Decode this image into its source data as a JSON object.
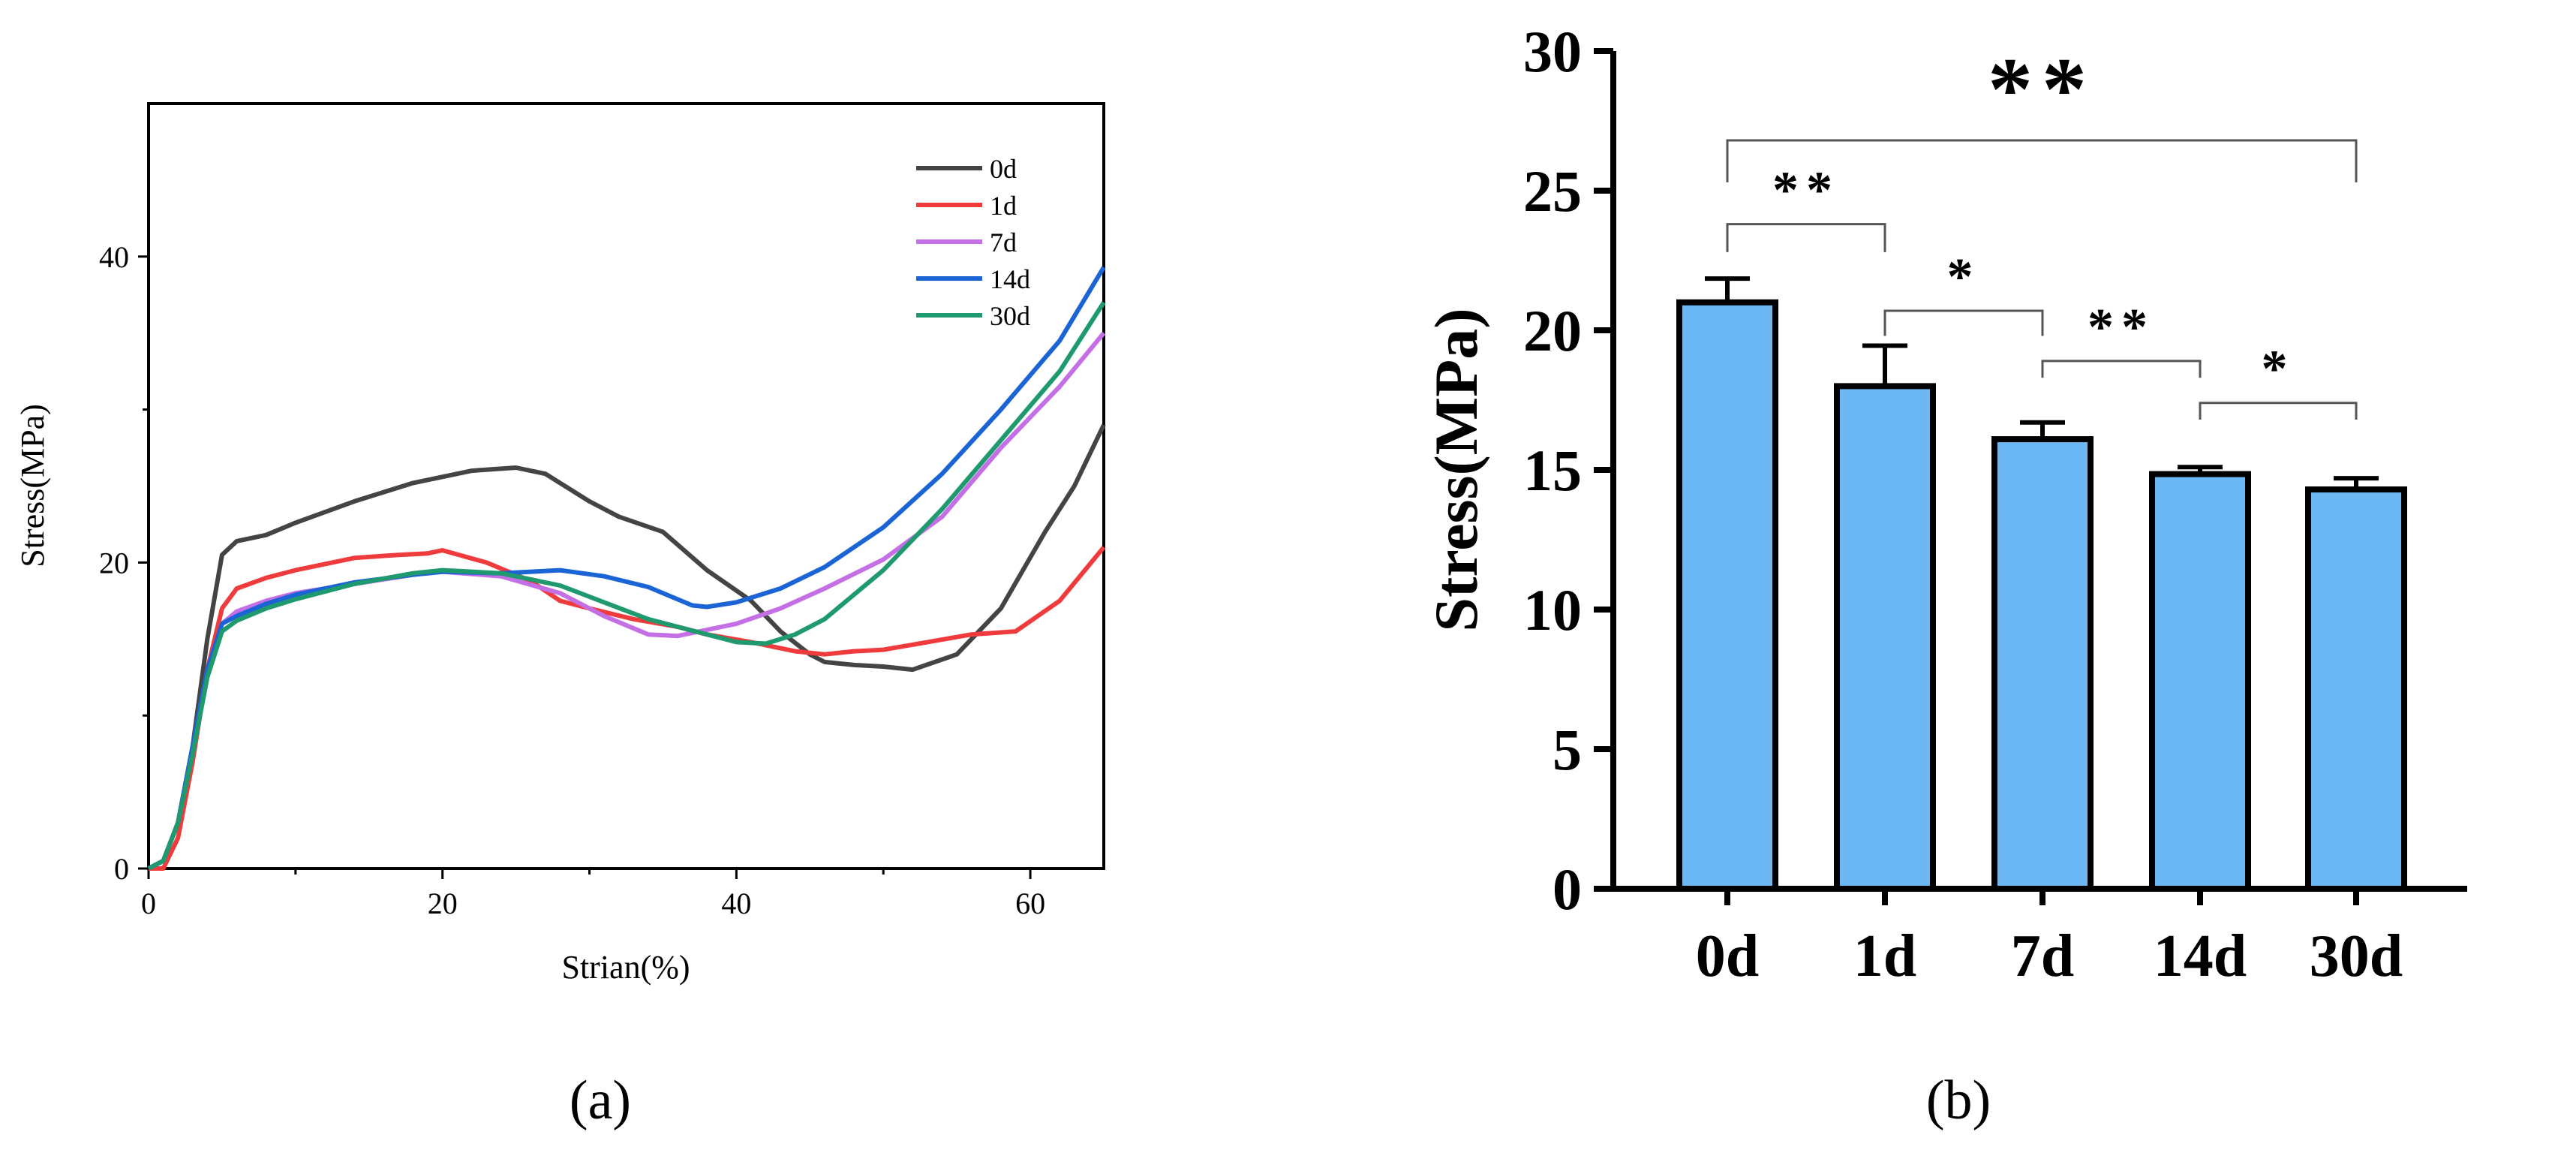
{
  "chart_data": [
    {
      "panel": "(a)",
      "type": "line",
      "xlabel": "Strian(%)",
      "ylabel": "Stress(MPa)",
      "xlim": [
        0,
        65
      ],
      "ylim": [
        0,
        50
      ],
      "xticks": [
        0,
        20,
        40,
        60
      ],
      "yticks": [
        0,
        20,
        40
      ],
      "legend_position": "top-right",
      "series": [
        {
          "name": "0d",
          "color": "#444444",
          "x": [
            0,
            1,
            2,
            3,
            4,
            5,
            6,
            8,
            10,
            14,
            18,
            22,
            25,
            27,
            30,
            32,
            35,
            38,
            41,
            43,
            45,
            46,
            48,
            50,
            52,
            55,
            58,
            61,
            63,
            65
          ],
          "y": [
            0,
            0.5,
            3,
            8,
            15,
            20.5,
            21.4,
            21.8,
            22.6,
            24,
            25.2,
            26,
            26.2,
            25.8,
            24,
            23,
            22,
            19.5,
            17.5,
            15.5,
            14,
            13.5,
            13.3,
            13.2,
            13,
            14,
            17,
            22,
            25,
            29
          ]
        },
        {
          "name": "1d",
          "color": "#ef3b3b",
          "x": [
            0,
            1,
            2,
            3,
            4,
            5,
            6,
            8,
            10,
            14,
            17,
            19,
            20,
            23,
            26,
            28,
            30,
            33,
            36,
            38,
            41,
            44,
            46,
            48,
            50,
            53,
            56,
            59,
            62,
            65
          ],
          "y": [
            0,
            0,
            2,
            7,
            13,
            17,
            18.3,
            19,
            19.5,
            20.3,
            20.5,
            20.6,
            20.8,
            20,
            18.8,
            17.5,
            17,
            16.3,
            15.8,
            15.3,
            14.8,
            14.2,
            14,
            14.2,
            14.3,
            14.8,
            15.3,
            15.5,
            17.5,
            21
          ]
        },
        {
          "name": "7d",
          "color": "#c46fe6",
          "x": [
            0,
            1,
            2,
            3,
            4,
            5,
            6,
            8,
            10,
            14,
            18,
            20,
            24,
            28,
            31,
            34,
            36,
            38,
            40,
            43,
            46,
            50,
            54,
            58,
            62,
            65
          ],
          "y": [
            0,
            0.5,
            3,
            8,
            13,
            16,
            16.8,
            17.5,
            18,
            18.6,
            19.2,
            19.4,
            19.1,
            18,
            16.5,
            15.3,
            15.2,
            15.6,
            16,
            17,
            18.3,
            20.2,
            23,
            27.5,
            31.5,
            35
          ]
        },
        {
          "name": "14d",
          "color": "#1a64d6",
          "x": [
            0,
            1,
            2,
            3,
            4,
            5,
            6,
            8,
            10,
            14,
            18,
            20,
            24,
            28,
            31,
            34,
            37,
            38,
            40,
            43,
            46,
            50,
            54,
            58,
            62,
            65
          ],
          "y": [
            0,
            0.5,
            3,
            8,
            13,
            16,
            16.5,
            17.3,
            17.9,
            18.7,
            19.2,
            19.4,
            19.3,
            19.5,
            19.1,
            18.4,
            17.2,
            17.1,
            17.4,
            18.3,
            19.7,
            22.3,
            25.8,
            30,
            34.5,
            39.3
          ]
        },
        {
          "name": "30d",
          "color": "#1e9a6e",
          "x": [
            0,
            1,
            2,
            3,
            4,
            5,
            6,
            8,
            10,
            14,
            18,
            20,
            24,
            28,
            31,
            34,
            36,
            38,
            40,
            42,
            44,
            46,
            50,
            54,
            58,
            62,
            65
          ],
          "y": [
            0,
            0.5,
            3,
            7.5,
            12.5,
            15.5,
            16.2,
            17,
            17.6,
            18.6,
            19.3,
            19.5,
            19.3,
            18.5,
            17.4,
            16.3,
            15.8,
            15.3,
            14.8,
            14.7,
            15.3,
            16.3,
            19.5,
            23.5,
            28,
            32.5,
            37
          ]
        }
      ]
    },
    {
      "panel": "(b)",
      "type": "bar",
      "ylabel": "Stress(MPa)",
      "ylim": [
        0,
        30
      ],
      "yticks": [
        0,
        5,
        10,
        15,
        20,
        25,
        30
      ],
      "categories": [
        "0d",
        "1d",
        "7d",
        "14d",
        "30d"
      ],
      "values": [
        21,
        18,
        16.1,
        14.85,
        14.3
      ],
      "errors": [
        0.85,
        1.45,
        0.6,
        0.25,
        0.4
      ],
      "bar_color": "#6cb8f4",
      "significance": [
        {
          "from": 0,
          "to": 4,
          "label": "**",
          "y": 26.8,
          "tick": 25.3
        },
        {
          "from": 0,
          "to": 1,
          "label": "**",
          "y": 23.8,
          "tick": 22.8
        },
        {
          "from": 1,
          "to": 2,
          "label": "*",
          "y": 20.7,
          "tick": 19.8
        },
        {
          "from": 2,
          "to": 3,
          "label": "**",
          "y": 18.9,
          "tick": 18.3
        },
        {
          "from": 3,
          "to": 4,
          "label": "*",
          "y": 17.4,
          "tick": 16.8
        }
      ]
    }
  ],
  "panel_labels": {
    "a": "(a)",
    "b": "(b)"
  }
}
